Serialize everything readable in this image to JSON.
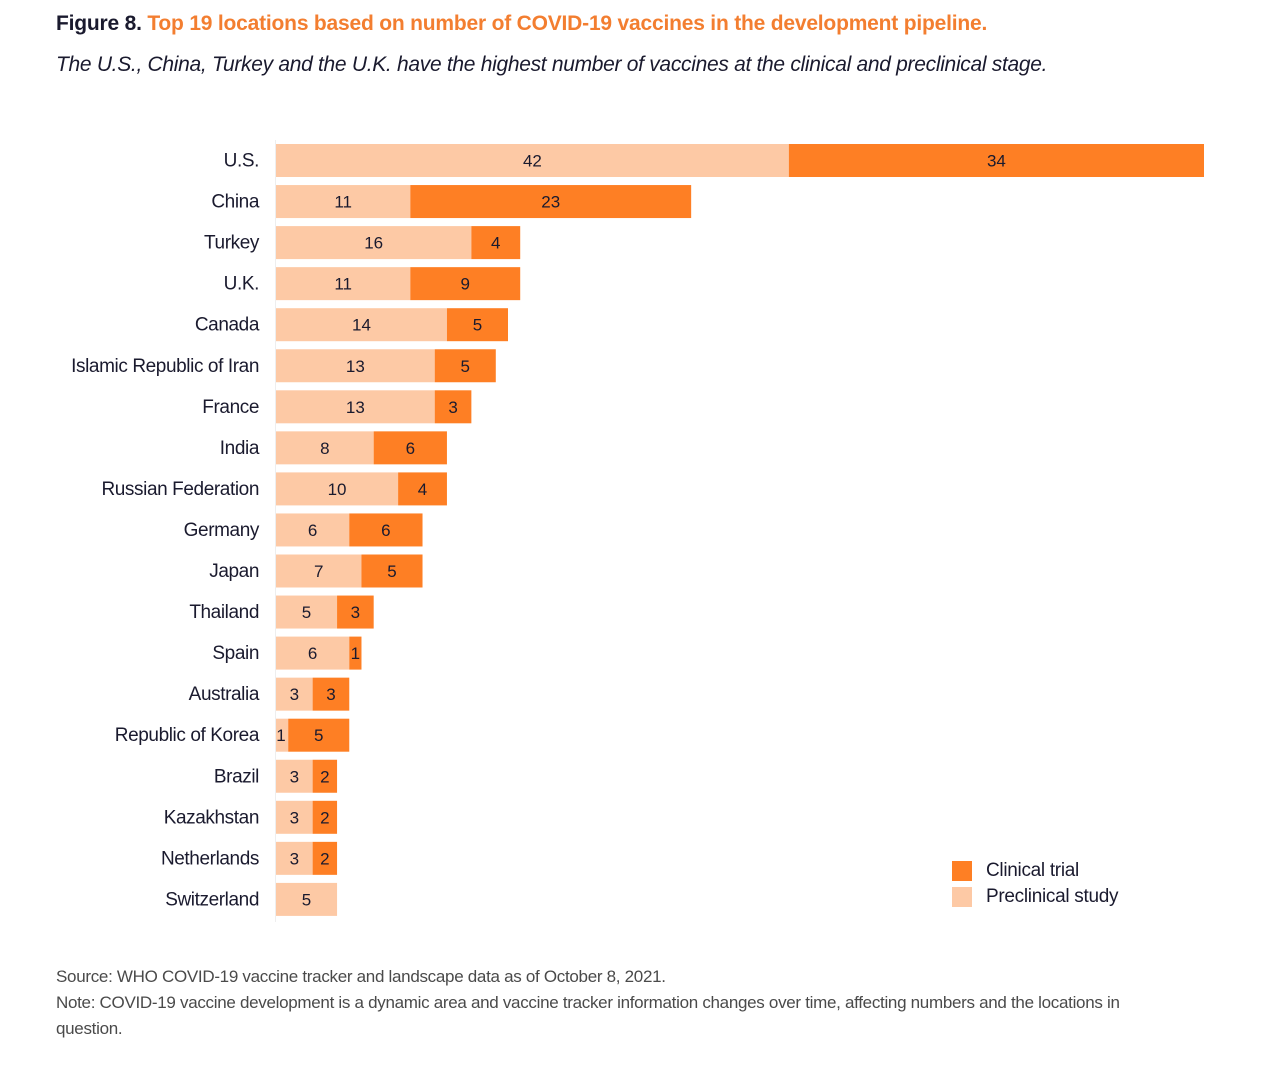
{
  "header": {
    "figure_label": "Figure 8.",
    "title": "Top 19 locations based on number of COVID-19 vaccines in the development pipeline.",
    "subtitle": "The U.S., China, Turkey and the U.K. have the highest number of vaccines at the clinical and preclinical stage."
  },
  "colors": {
    "clinical": "#fe7f24",
    "preclinical": "#fdc9a5",
    "title_accent": "#f37e30"
  },
  "chart_data": {
    "type": "bar",
    "orientation": "horizontal",
    "stacked": true,
    "title": "Top 19 locations based on number of COVID-19 vaccines in the development pipeline.",
    "xlabel": "",
    "ylabel": "",
    "xlim": [
      0,
      76
    ],
    "grid": false,
    "legend_position": "bottom-right",
    "categories": [
      "U.S.",
      "China",
      "Turkey",
      "U.K.",
      "Canada",
      "Islamic Republic of Iran",
      "France",
      "India",
      "Russian Federation",
      "Germany",
      "Japan",
      "Thailand",
      "Spain",
      "Australia",
      "Republic of Korea",
      "Brazil",
      "Kazakhstan",
      "Netherlands",
      "Switzerland"
    ],
    "series": [
      {
        "name": "Preclinical study",
        "key": "preclinical",
        "values": [
          42,
          11,
          16,
          11,
          14,
          13,
          13,
          8,
          10,
          6,
          7,
          5,
          6,
          3,
          1,
          3,
          3,
          3,
          5
        ]
      },
      {
        "name": "Clinical trial",
        "key": "clinical",
        "values": [
          34,
          23,
          4,
          9,
          5,
          5,
          3,
          6,
          4,
          6,
          5,
          3,
          1,
          3,
          5,
          2,
          2,
          2,
          0
        ]
      }
    ]
  },
  "legend": {
    "items": [
      {
        "label": "Clinical trial",
        "key": "clinical"
      },
      {
        "label": "Preclinical study",
        "key": "preclinical"
      }
    ]
  },
  "footer": {
    "source": "Source: WHO COVID-19 vaccine tracker and landscape data as of October 8, 2021.",
    "note": "Note: COVID-19 vaccine development is a dynamic area and vaccine tracker information changes over time, affecting numbers and the locations in question."
  }
}
